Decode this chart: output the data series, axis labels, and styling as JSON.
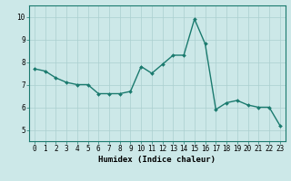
{
  "x": [
    0,
    1,
    2,
    3,
    4,
    5,
    6,
    7,
    8,
    9,
    10,
    11,
    12,
    13,
    14,
    15,
    16,
    17,
    18,
    19,
    20,
    21,
    22,
    23
  ],
  "y": [
    7.7,
    7.6,
    7.3,
    7.1,
    7.0,
    7.0,
    6.6,
    6.6,
    6.6,
    6.7,
    7.8,
    7.5,
    7.9,
    8.3,
    8.3,
    9.9,
    8.8,
    5.9,
    6.2,
    6.3,
    6.1,
    6.0,
    6.0,
    5.2
  ],
  "line_color": "#1a7a6e",
  "marker": "D",
  "marker_size": 2.0,
  "line_width": 1.0,
  "background_color": "#cce8e8",
  "grid_color": "#aacfcf",
  "xlabel": "Humidex (Indice chaleur)",
  "xlim": [
    -0.5,
    23.5
  ],
  "ylim": [
    4.5,
    10.5
  ],
  "yticks": [
    5,
    6,
    7,
    8,
    9,
    10
  ],
  "xticks": [
    0,
    1,
    2,
    3,
    4,
    5,
    6,
    7,
    8,
    9,
    10,
    11,
    12,
    13,
    14,
    15,
    16,
    17,
    18,
    19,
    20,
    21,
    22,
    23
  ],
  "xlabel_fontsize": 6.5,
  "tick_fontsize": 5.5
}
